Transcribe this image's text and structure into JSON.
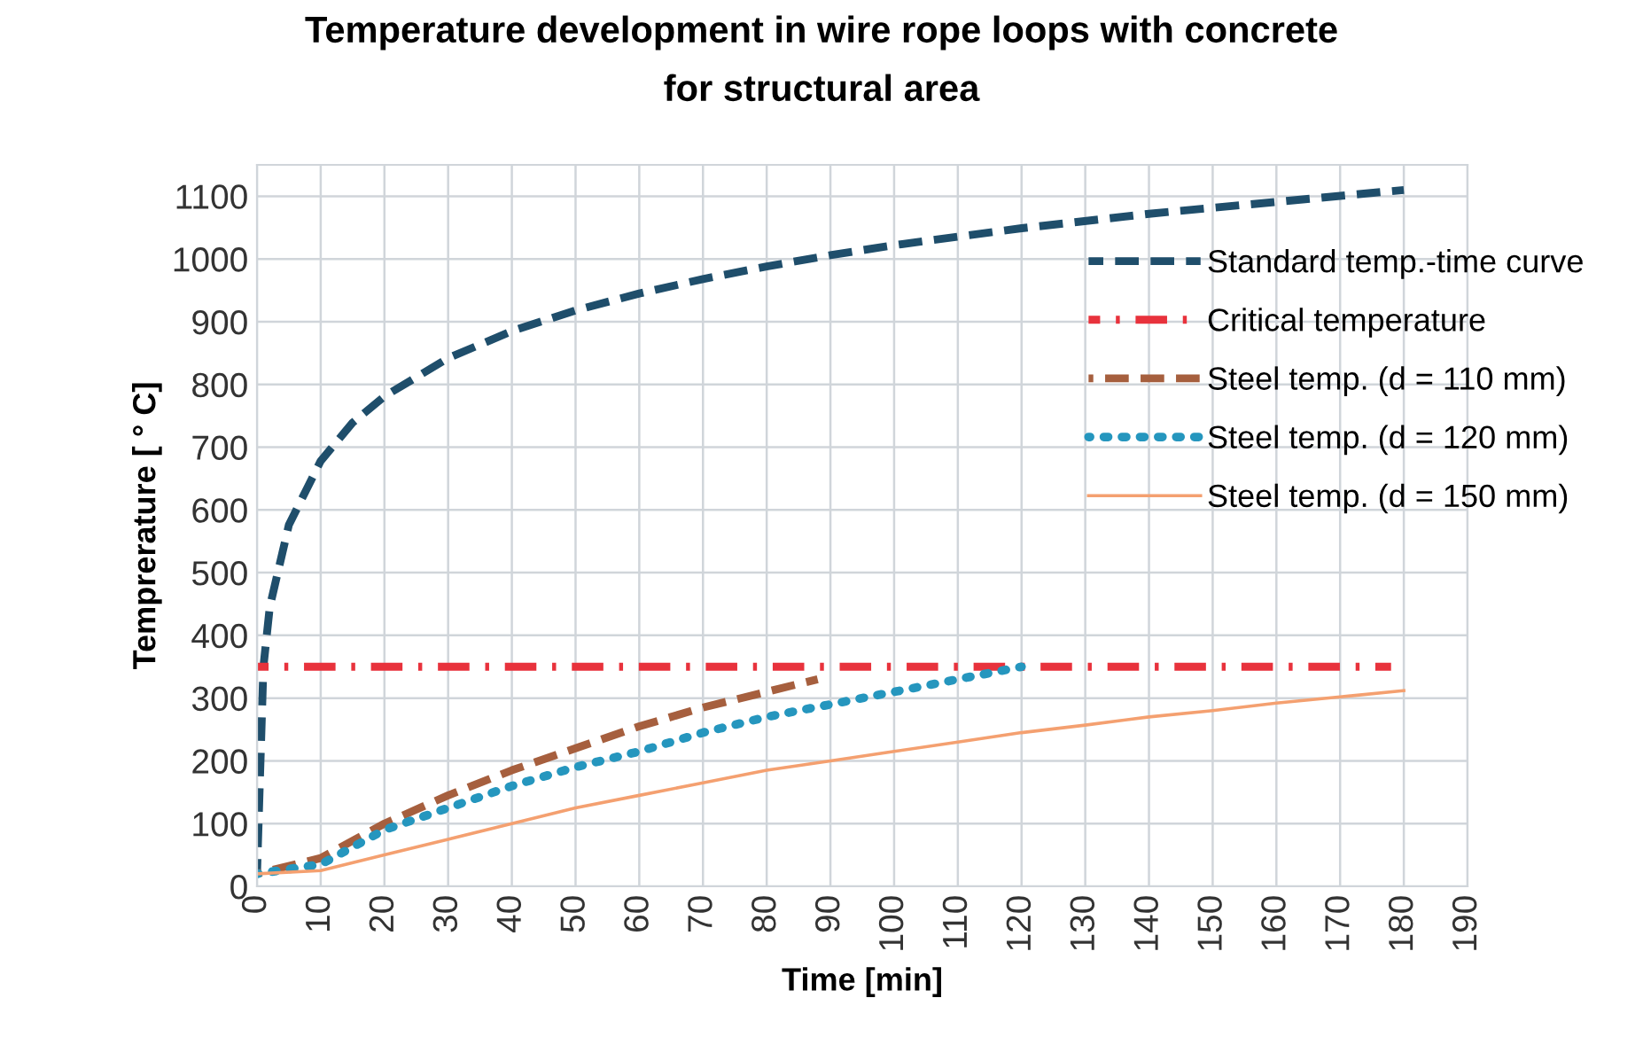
{
  "chart_data": {
    "type": "line",
    "title": "Temperature development in wire rope loops with concrete\nfor structural area",
    "xlabel": "Time [min]",
    "ylabel": "Temprerature [ ° C]",
    "xlim": [
      0,
      190
    ],
    "xticks": [
      0,
      10,
      20,
      30,
      40,
      50,
      60,
      70,
      80,
      90,
      100,
      110,
      120,
      130,
      140,
      150,
      160,
      170,
      180,
      190
    ],
    "ylim": [
      0,
      1150
    ],
    "yticks": [
      0,
      100,
      200,
      300,
      400,
      500,
      600,
      700,
      800,
      900,
      1000,
      1100
    ],
    "grid": true,
    "legend": "right",
    "marker": "none",
    "series": [
      {
        "name": "Standard temp.-time curve",
        "color": "#1f4e6b",
        "line_style": "dashed",
        "x": [
          0,
          1,
          2,
          5,
          10,
          15,
          20,
          30,
          40,
          50,
          60,
          70,
          80,
          90,
          100,
          120,
          140,
          160,
          180
        ],
        "values": [
          20,
          349,
          445,
          576,
          678,
          739,
          781,
          842,
          885,
          918,
          945,
          968,
          988,
          1006,
          1022,
          1049,
          1072,
          1091,
          1110
        ]
      },
      {
        "name": "Critical temperature",
        "color": "#e8323c",
        "line_style": "dashdot",
        "x": [
          0,
          178
        ],
        "values": [
          350,
          350
        ]
      },
      {
        "name": "Steel temp. (d = 110 mm)",
        "color": "#a65f3e",
        "line_style": "dashed",
        "x": [
          0,
          10,
          20,
          30,
          40,
          50,
          60,
          70,
          80,
          88
        ],
        "values": [
          20,
          45,
          100,
          145,
          185,
          220,
          255,
          285,
          310,
          330
        ]
      },
      {
        "name": "Steel temp. (d = 120 mm)",
        "color": "#2596be",
        "line_style": "dotted",
        "x": [
          0,
          10,
          20,
          30,
          40,
          50,
          60,
          70,
          80,
          90,
          100,
          110,
          120
        ],
        "values": [
          20,
          35,
          90,
          125,
          160,
          190,
          215,
          245,
          270,
          290,
          310,
          330,
          350
        ]
      },
      {
        "name": "Steel temp. (d = 150 mm)",
        "color": "#f4a070",
        "line_style": "solid",
        "x": [
          0,
          10,
          20,
          30,
          40,
          50,
          60,
          70,
          80,
          90,
          100,
          110,
          120,
          130,
          140,
          150,
          160,
          170,
          180
        ],
        "values": [
          20,
          25,
          50,
          75,
          100,
          125,
          145,
          165,
          185,
          200,
          215,
          230,
          245,
          257,
          270,
          280,
          292,
          302,
          312
        ]
      }
    ]
  }
}
